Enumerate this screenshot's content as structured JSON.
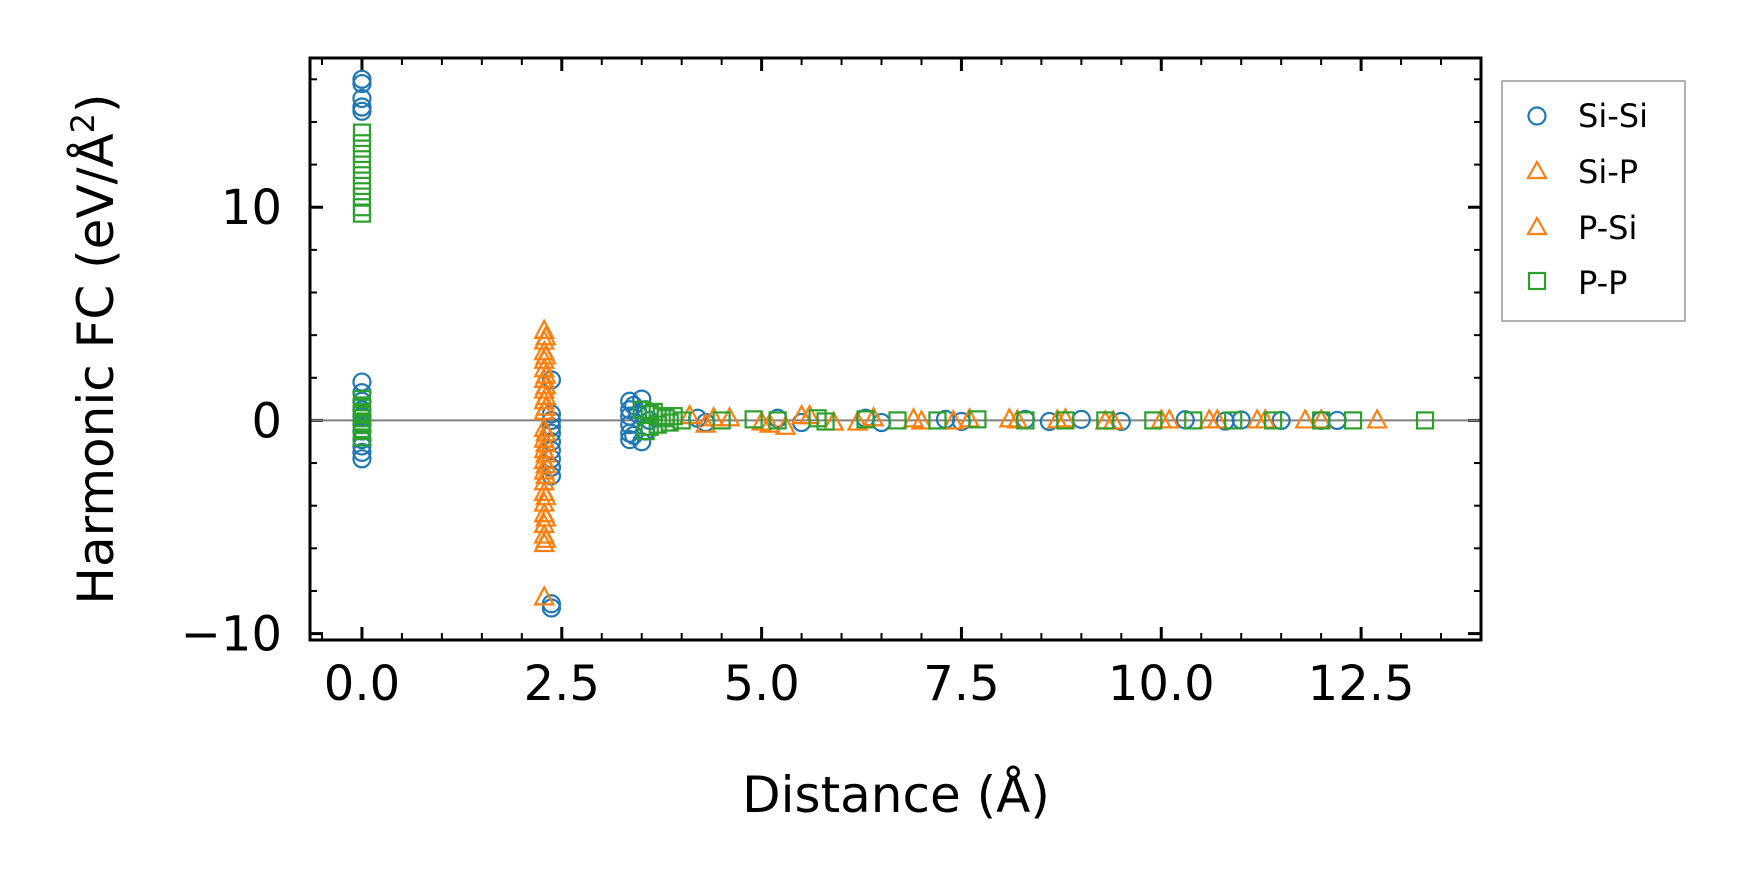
{
  "chart_data": {
    "type": "scatter",
    "xlabel": "Distance (Å)",
    "ylabel_main": "Harmonic FC (eV/Å",
    "ylabel_sup": "2",
    "ylabel_end": ")",
    "xlim": [
      -0.65,
      14.0
    ],
    "ylim": [
      -10.3,
      17.0
    ],
    "x_ticks": [
      0.0,
      2.5,
      5.0,
      7.5,
      10.0,
      12.5
    ],
    "x_tick_labels": [
      "0.0",
      "2.5",
      "5.0",
      "7.5",
      "10.0",
      "12.5"
    ],
    "y_ticks": [
      -10,
      0,
      10
    ],
    "y_tick_labels": [
      "−10",
      "0",
      "10"
    ],
    "reference_line_y": 0,
    "legend_position": "outside-right-top",
    "series": [
      {
        "name": "Si-Si",
        "marker": "circle",
        "color": "#1f77b4",
        "x": [
          0.0,
          0.0,
          0.0,
          0.0,
          0.0,
          0.0,
          0.0,
          0.0,
          0.0,
          0.0,
          0.0,
          0.0,
          0.0,
          0.0,
          0.0,
          0.0,
          2.37,
          2.37,
          2.37,
          2.37,
          2.37,
          2.37,
          2.37,
          2.37,
          2.37,
          2.37,
          2.37,
          2.37,
          3.35,
          3.35,
          3.35,
          3.35,
          3.35,
          3.35,
          3.4,
          3.4,
          3.45,
          3.5,
          3.5,
          3.55,
          3.55,
          3.6,
          4.2,
          4.3,
          5.2,
          5.5,
          6.3,
          6.5,
          7.3,
          7.5,
          8.3,
          8.6,
          9.0,
          9.5,
          10.3,
          10.8,
          11.0,
          11.5,
          12.0,
          12.2
        ],
        "y": [
          16.0,
          15.8,
          15.1,
          14.7,
          14.5,
          1.8,
          1.3,
          0.9,
          0.5,
          0.2,
          -0.2,
          -0.5,
          -0.9,
          -1.2,
          -1.5,
          -1.8,
          -8.6,
          -8.8,
          1.9,
          0.3,
          0.0,
          -0.3,
          -0.6,
          -1.0,
          -1.4,
          -1.8,
          -2.2,
          -2.6,
          0.9,
          0.5,
          0.2,
          -0.2,
          -0.6,
          -0.9,
          0.7,
          -0.7,
          0.3,
          1.0,
          -1.0,
          0.5,
          -0.5,
          0.0,
          0.1,
          -0.1,
          0.1,
          -0.1,
          0.1,
          -0.1,
          0.05,
          -0.05,
          0.05,
          -0.05,
          0.05,
          -0.05,
          0.03,
          -0.03,
          0.02,
          0.0,
          0.0,
          0.0
        ]
      },
      {
        "name": "Si-P",
        "marker": "triangle",
        "color": "#ff7f0e",
        "x": [
          2.28,
          2.28,
          2.28,
          2.28,
          2.28,
          2.28,
          2.28,
          2.28,
          2.28,
          2.28,
          2.28,
          2.28,
          2.28,
          2.28,
          2.28,
          2.28,
          2.28,
          2.28,
          2.28,
          2.28,
          2.28,
          2.28,
          4.1,
          4.3,
          4.6,
          5.0,
          5.3,
          5.5,
          5.9,
          6.4,
          7.0,
          7.6,
          8.2,
          8.8,
          9.4,
          10.0,
          10.7,
          11.3,
          12.0
        ],
        "y": [
          4.2,
          3.7,
          3.2,
          2.8,
          2.4,
          1.9,
          1.4,
          0.9,
          0.4,
          -0.4,
          -0.9,
          -1.4,
          -1.9,
          -2.4,
          -2.9,
          -3.4,
          -3.9,
          -4.4,
          -4.9,
          -5.4,
          -5.8,
          -8.3,
          0.2,
          -0.2,
          0.1,
          -0.1,
          -0.3,
          0.2,
          -0.1,
          0.1,
          -0.05,
          0.05,
          0.0,
          0.05,
          -0.05,
          0.0,
          0.0,
          0.0,
          0.0
        ]
      },
      {
        "name": "P-Si",
        "marker": "triangle",
        "color": "#ff7f0e",
        "x": [
          2.3,
          2.3,
          2.3,
          2.3,
          2.3,
          2.3,
          2.3,
          2.3,
          2.3,
          2.3,
          2.3,
          2.3,
          2.3,
          2.3,
          4.4,
          5.1,
          5.6,
          6.2,
          6.9,
          7.4,
          8.1,
          8.7,
          9.3,
          10.1,
          10.6,
          11.2,
          11.8,
          12.7
        ],
        "y": [
          3.9,
          3.0,
          2.1,
          1.6,
          1.1,
          0.6,
          -0.6,
          -1.1,
          -1.6,
          -2.1,
          -2.6,
          -3.6,
          -4.6,
          -5.6,
          0.1,
          -0.2,
          0.2,
          -0.1,
          0.05,
          -0.05,
          0.05,
          0.0,
          -0.05,
          0.0,
          0.0,
          0.0,
          0.0,
          0.0
        ]
      },
      {
        "name": "P-P",
        "marker": "square",
        "color": "#2ca02c",
        "x": [
          0.0,
          0.0,
          0.0,
          0.0,
          0.0,
          0.0,
          0.0,
          0.0,
          0.0,
          0.0,
          0.0,
          0.0,
          0.0,
          0.0,
          0.0,
          0.0,
          0.0,
          0.0,
          0.0,
          0.0,
          3.5,
          3.55,
          3.6,
          3.6,
          3.65,
          3.7,
          3.75,
          3.8,
          3.85,
          3.9,
          4.0,
          4.5,
          4.9,
          5.2,
          5.7,
          5.8,
          6.3,
          6.7,
          7.2,
          7.7,
          8.3,
          8.8,
          9.3,
          9.9,
          10.4,
          10.9,
          11.4,
          12.0,
          12.4,
          13.3
        ],
        "y": [
          13.5,
          13.0,
          12.5,
          12.0,
          11.5,
          11.0,
          10.5,
          10.0,
          9.7,
          1.0,
          0.7,
          0.4,
          0.1,
          -0.2,
          -0.5,
          -0.8,
          0.3,
          -0.1,
          0.6,
          -0.4,
          0.5,
          -0.5,
          0.3,
          -0.3,
          0.4,
          -0.2,
          0.2,
          0.1,
          -0.1,
          0.2,
          0.0,
          0.0,
          0.05,
          0.0,
          0.1,
          -0.05,
          0.05,
          0.0,
          0.0,
          0.05,
          0.0,
          0.0,
          0.0,
          0.0,
          0.0,
          0.0,
          0.0,
          0.0,
          0.0,
          0.0
        ]
      }
    ]
  }
}
